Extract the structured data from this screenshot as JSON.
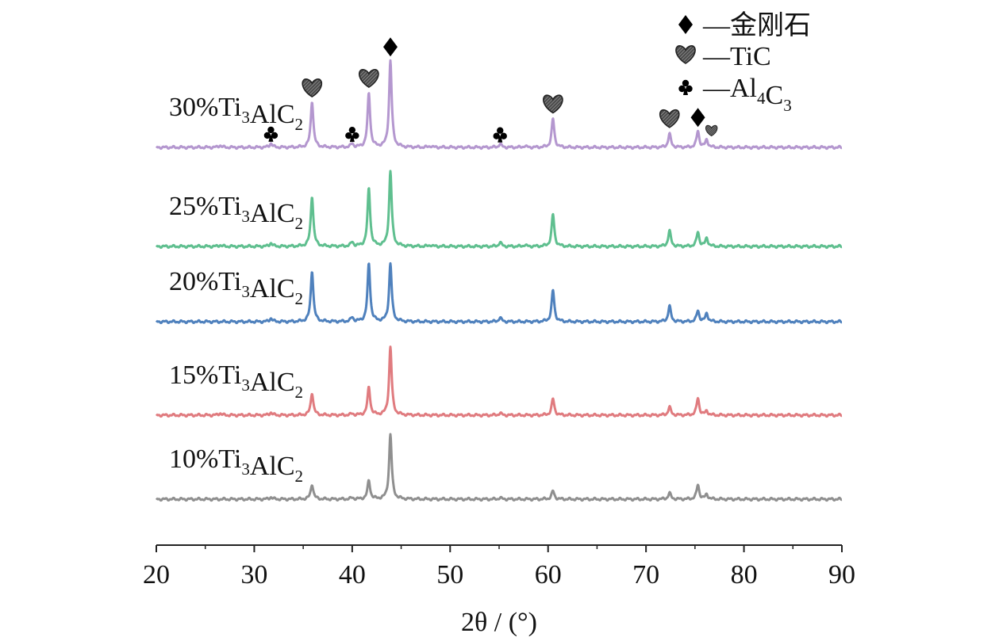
{
  "chart_data": {
    "type": "line",
    "xlabel": "2θ / (°)",
    "ylabel": "",
    "xlim": [
      20,
      90
    ],
    "xticks": [
      "20",
      "30",
      "40",
      "50",
      "60",
      "70",
      "80",
      "90"
    ],
    "grid": false,
    "legend_position": "top-right",
    "legend": [
      {
        "symbol": "diamond",
        "label": "—金刚石"
      },
      {
        "symbol": "heart",
        "label": "—TiC"
      },
      {
        "symbol": "club",
        "label": "—Al4C3"
      }
    ],
    "series": [
      {
        "name": "10%Ti3AlC2",
        "color": "#8f8f8f",
        "peaks": [
          {
            "x": 31.7,
            "h": 0.03
          },
          {
            "x": 35.9,
            "h": 0.22
          },
          {
            "x": 40.0,
            "h": 0.02
          },
          {
            "x": 41.7,
            "h": 0.27
          },
          {
            "x": 43.9,
            "h": 0.95
          },
          {
            "x": 55.1,
            "h": 0.02
          },
          {
            "x": 60.5,
            "h": 0.12
          },
          {
            "x": 72.4,
            "h": 0.09
          },
          {
            "x": 75.3,
            "h": 0.21
          },
          {
            "x": 76.2,
            "h": 0.07
          }
        ]
      },
      {
        "name": "15%Ti3AlC2",
        "color": "#e07b7f",
        "peaks": [
          {
            "x": 26.5,
            "h": 0.03
          },
          {
            "x": 31.7,
            "h": 0.04
          },
          {
            "x": 35.9,
            "h": 0.33
          },
          {
            "x": 40.0,
            "h": 0.02
          },
          {
            "x": 41.7,
            "h": 0.41
          },
          {
            "x": 43.9,
            "h": 1.0
          },
          {
            "x": 55.1,
            "h": 0.03
          },
          {
            "x": 60.5,
            "h": 0.24
          },
          {
            "x": 72.4,
            "h": 0.12
          },
          {
            "x": 75.3,
            "h": 0.25
          },
          {
            "x": 76.2,
            "h": 0.06
          }
        ]
      },
      {
        "name": "20%Ti3AlC2",
        "color": "#4f81bd",
        "peaks": [
          {
            "x": 31.7,
            "h": 0.05
          },
          {
            "x": 35.9,
            "h": 0.75
          },
          {
            "x": 40.0,
            "h": 0.06
          },
          {
            "x": 41.7,
            "h": 0.85
          },
          {
            "x": 43.9,
            "h": 0.85
          },
          {
            "x": 55.1,
            "h": 0.06
          },
          {
            "x": 60.5,
            "h": 0.46
          },
          {
            "x": 72.4,
            "h": 0.23
          },
          {
            "x": 75.3,
            "h": 0.16
          },
          {
            "x": 76.2,
            "h": 0.12
          }
        ]
      },
      {
        "name": "25%Ti3AlC2",
        "color": "#5fbf8f",
        "peaks": [
          {
            "x": 26.5,
            "h": 0.02
          },
          {
            "x": 31.7,
            "h": 0.05
          },
          {
            "x": 35.9,
            "h": 0.74
          },
          {
            "x": 40.0,
            "h": 0.06
          },
          {
            "x": 41.7,
            "h": 0.85
          },
          {
            "x": 43.9,
            "h": 1.1
          },
          {
            "x": 48.0,
            "h": 0.02
          },
          {
            "x": 55.1,
            "h": 0.06
          },
          {
            "x": 57.6,
            "h": 0.02
          },
          {
            "x": 60.5,
            "h": 0.47
          },
          {
            "x": 72.4,
            "h": 0.23
          },
          {
            "x": 75.3,
            "h": 0.21
          },
          {
            "x": 76.2,
            "h": 0.12
          }
        ]
      },
      {
        "name": "30%Ti3AlC2",
        "color": "#b497cf",
        "peaks": [
          {
            "x": 26.5,
            "h": 0.03
          },
          {
            "x": 31.7,
            "h": 0.06
          },
          {
            "x": 35.9,
            "h": 0.68
          },
          {
            "x": 40.0,
            "h": 0.05
          },
          {
            "x": 41.7,
            "h": 0.79
          },
          {
            "x": 43.9,
            "h": 1.27
          },
          {
            "x": 48.0,
            "h": 0.02
          },
          {
            "x": 55.1,
            "h": 0.05
          },
          {
            "x": 57.6,
            "h": 0.02
          },
          {
            "x": 60.5,
            "h": 0.42
          },
          {
            "x": 72.4,
            "h": 0.2
          },
          {
            "x": 75.3,
            "h": 0.24
          },
          {
            "x": 76.2,
            "h": 0.11
          }
        ]
      }
    ],
    "annotations": [
      {
        "series": "30%Ti3AlC2",
        "x": 31.7,
        "symbol": "club"
      },
      {
        "series": "30%Ti3AlC2",
        "x": 35.9,
        "symbol": "heart"
      },
      {
        "series": "30%Ti3AlC2",
        "x": 40.0,
        "symbol": "club"
      },
      {
        "series": "30%Ti3AlC2",
        "x": 41.7,
        "symbol": "heart"
      },
      {
        "series": "30%Ti3AlC2",
        "x": 43.9,
        "symbol": "diamond"
      },
      {
        "series": "30%Ti3AlC2",
        "x": 55.1,
        "symbol": "club"
      },
      {
        "series": "30%Ti3AlC2",
        "x": 60.5,
        "symbol": "heart"
      },
      {
        "series": "30%Ti3AlC2",
        "x": 72.4,
        "symbol": "heart"
      },
      {
        "series": "30%Ti3AlC2",
        "x": 75.3,
        "symbol": "diamond"
      },
      {
        "series": "30%Ti3AlC2",
        "x": 76.2,
        "symbol": "heart-small"
      }
    ]
  }
}
